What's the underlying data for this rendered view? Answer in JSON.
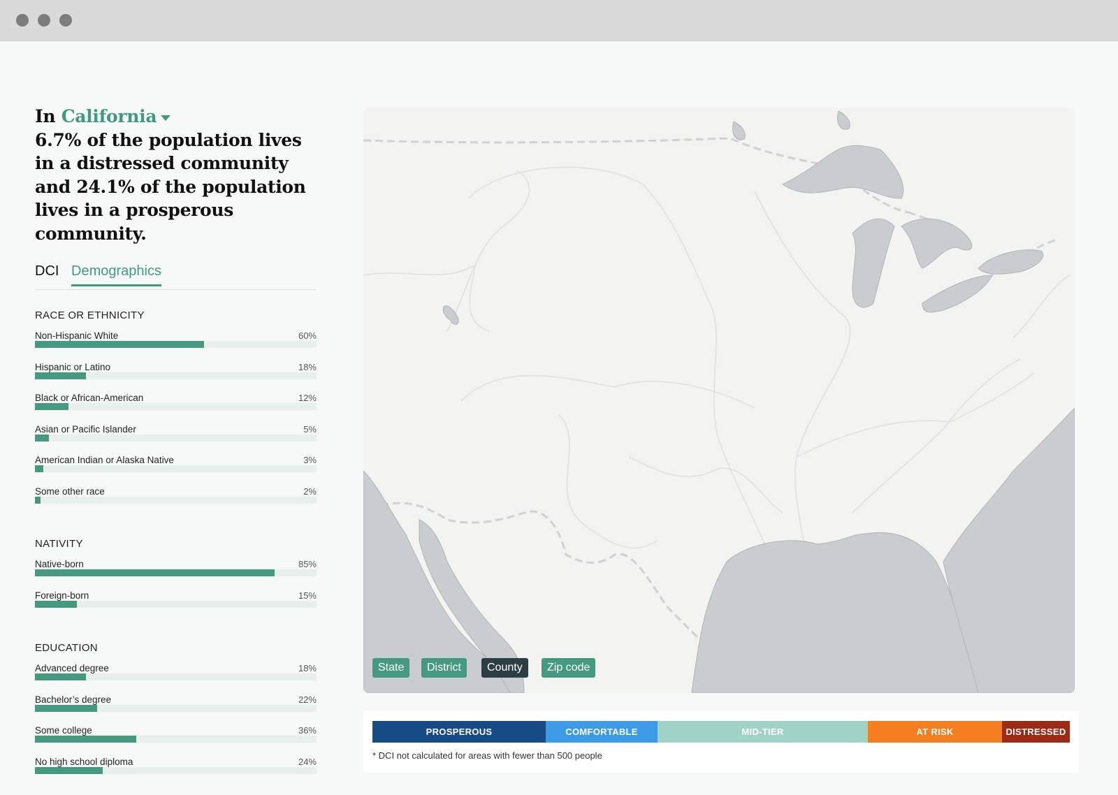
{
  "window": {
    "controls": [
      "close",
      "minimize",
      "maximize"
    ]
  },
  "headline": {
    "prefix": "In",
    "region": "California",
    "text": "6.7% of the population lives in a distressed community and 24.1% of the population lives in a prosperous community."
  },
  "tabs": {
    "dci": "DCI",
    "demographics": "Demographics",
    "active": "Demographics"
  },
  "sections": {
    "race": {
      "title": "RACE OR ETHNICITY",
      "items": [
        {
          "label": "Non-Hispanic White",
          "pct": "60%",
          "value": 60
        },
        {
          "label": "Hispanic or Latino",
          "pct": "18%",
          "value": 18
        },
        {
          "label": "Black or African-American",
          "pct": "12%",
          "value": 12
        },
        {
          "label": "Asian or Pacific Islander",
          "pct": "5%",
          "value": 5
        },
        {
          "label": "American Indian or Alaska Native",
          "pct": "3%",
          "value": 3
        },
        {
          "label": "Some other race",
          "pct": "2%",
          "value": 2
        }
      ]
    },
    "nativity": {
      "title": "NATIVITY",
      "items": [
        {
          "label": "Native-born",
          "pct": "85%",
          "value": 85
        },
        {
          "label": "Foreign-born",
          "pct": "15%",
          "value": 15
        }
      ]
    },
    "education": {
      "title": "EDUCATION",
      "items": [
        {
          "label": "Advanced degree",
          "pct": "18%",
          "value": 18
        },
        {
          "label": "Bachelor’s degree",
          "pct": "22%",
          "value": 22
        },
        {
          "label": "Some college",
          "pct": "36%",
          "value": 36
        },
        {
          "label": "No high school diploma",
          "pct": "24%",
          "value": 24
        }
      ]
    }
  },
  "map": {
    "levels": [
      {
        "label": "State",
        "active": false
      },
      {
        "label": "District",
        "active": false
      },
      {
        "label": "County",
        "active": true
      },
      {
        "label": "Zip code",
        "active": false
      }
    ],
    "colors": {
      "land": "#f3f3f1",
      "water": "#c9cdcf",
      "border": "#cfd2d3",
      "river": "#dde2e0"
    }
  },
  "legend": {
    "items": [
      {
        "label": "PROSPEROUS",
        "color": "#164b84"
      },
      {
        "label": "COMFORTABLE",
        "color": "#3d9ae6"
      },
      {
        "label": "MID-TIER",
        "color": "#a0d3c3"
      },
      {
        "label": "AT RISK",
        "color": "#f57e20"
      },
      {
        "label": "DISTRESSED",
        "color": "#9c2a15"
      }
    ],
    "footnote": "* DCI not calculated for areas with fewer than 500 people"
  }
}
